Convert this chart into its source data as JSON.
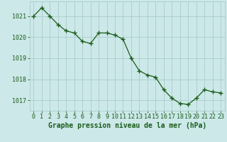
{
  "x": [
    0,
    1,
    2,
    3,
    4,
    5,
    6,
    7,
    8,
    9,
    10,
    11,
    12,
    13,
    14,
    15,
    16,
    17,
    18,
    19,
    20,
    21,
    22,
    23
  ],
  "y": [
    1021.0,
    1021.4,
    1021.0,
    1020.6,
    1020.3,
    1020.2,
    1019.8,
    1019.7,
    1020.2,
    1020.2,
    1020.1,
    1019.9,
    1019.0,
    1018.4,
    1018.2,
    1018.1,
    1017.5,
    1017.1,
    1016.85,
    1016.8,
    1017.1,
    1017.5,
    1017.4,
    1017.35
  ],
  "line_color": "#1a5c1a",
  "marker": "+",
  "marker_size": 4,
  "marker_linewidth": 1.0,
  "line_width": 0.9,
  "bg_color": "#cce8e8",
  "grid_color": "#aacccc",
  "xlabel": "Graphe pression niveau de la mer (hPa)",
  "xlabel_color": "#1a5c1a",
  "xlabel_fontsize": 7,
  "tick_color": "#1a5c1a",
  "tick_fontsize": 6,
  "ylim": [
    1016.5,
    1021.7
  ],
  "yticks": [
    1017,
    1018,
    1019,
    1020,
    1021
  ],
  "xlim": [
    -0.5,
    23.5
  ],
  "xticks": [
    0,
    1,
    2,
    3,
    4,
    5,
    6,
    7,
    8,
    9,
    10,
    11,
    12,
    13,
    14,
    15,
    16,
    17,
    18,
    19,
    20,
    21,
    22,
    23
  ]
}
